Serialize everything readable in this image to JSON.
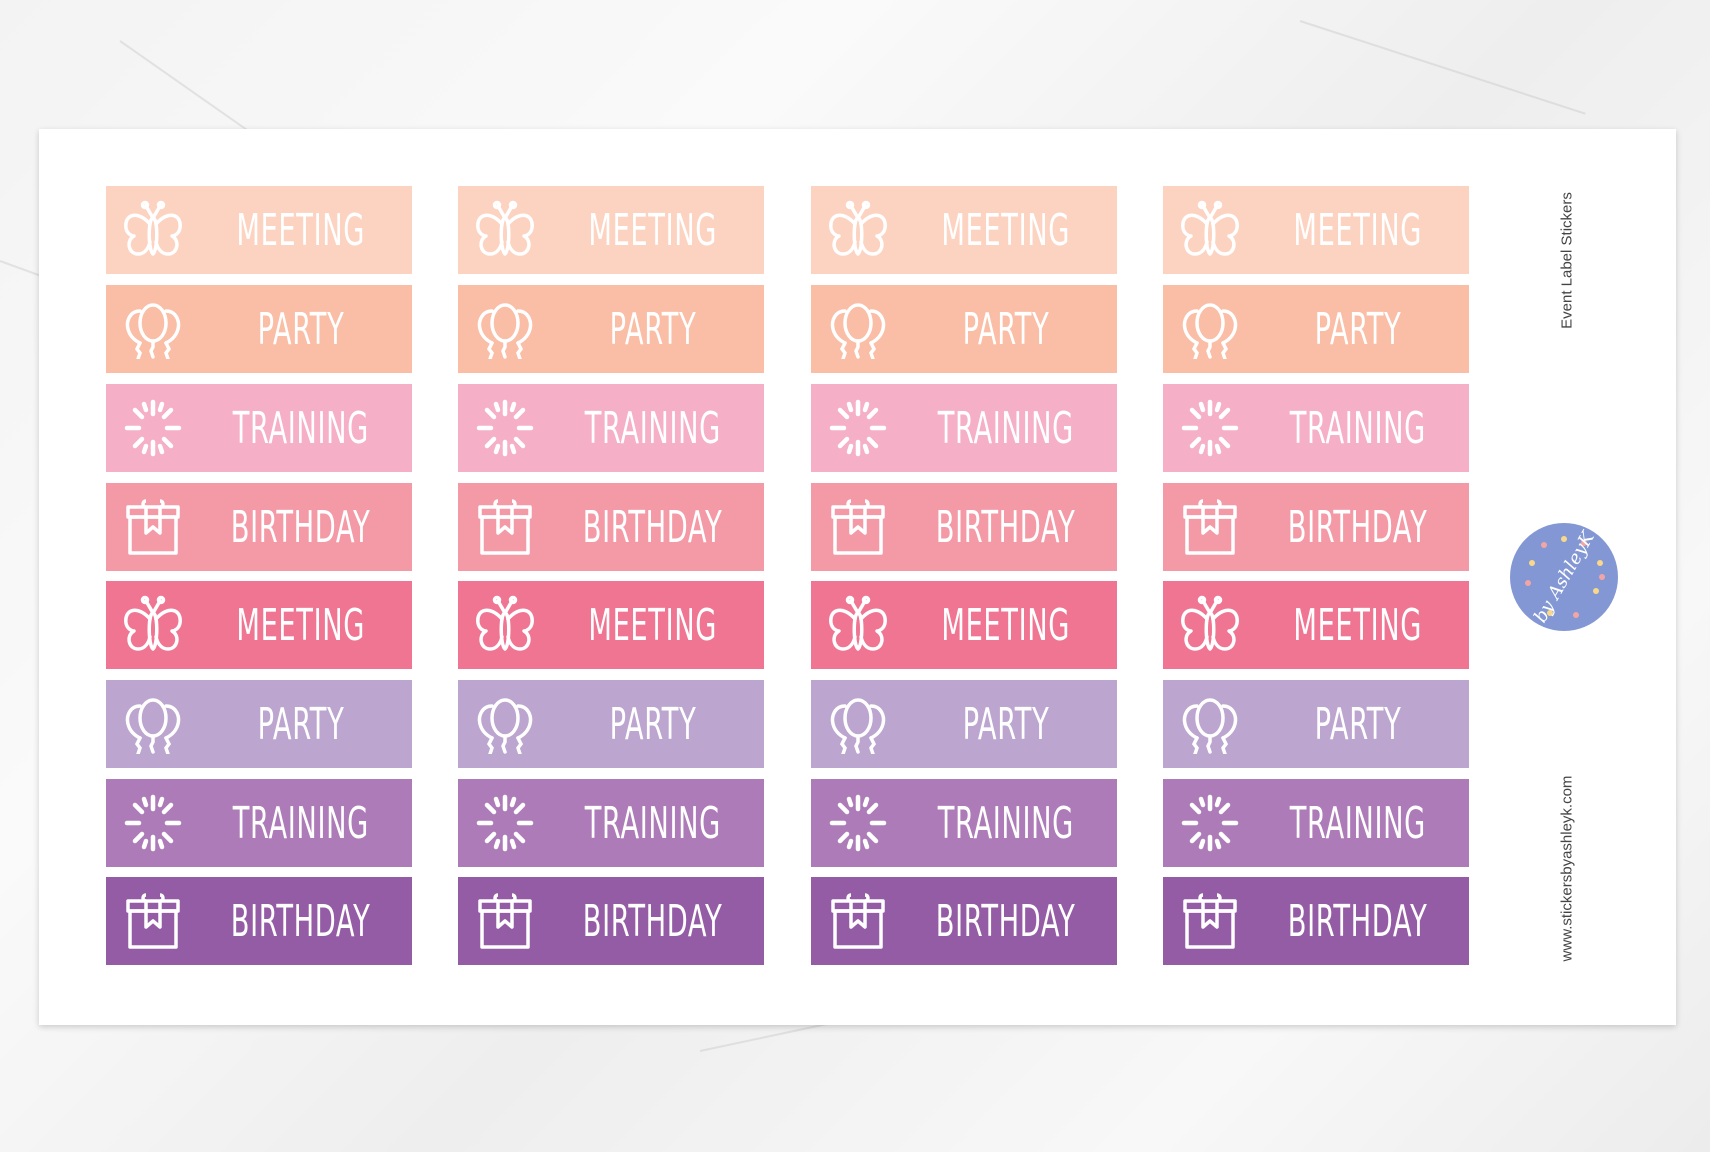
{
  "sheet": {
    "title": "Event Label Stickers",
    "website": "www.stickersbyashleyk.com",
    "logo_text": "by AshleyK"
  },
  "rows": [
    {
      "label": "MEETING",
      "icon": "butterfly-icon",
      "color": "#fcd3c1"
    },
    {
      "label": "PARTY",
      "icon": "balloons-icon",
      "color": "#fabda5"
    },
    {
      "label": "TRAINING",
      "icon": "sunburst-icon",
      "color": "#f5afc7"
    },
    {
      "label": "BIRTHDAY",
      "icon": "gift-icon",
      "color": "#f49aa6"
    },
    {
      "label": "MEETING",
      "icon": "butterfly-icon",
      "color": "#f07592"
    },
    {
      "label": "PARTY",
      "icon": "balloons-icon",
      "color": "#bca5cf"
    },
    {
      "label": "TRAINING",
      "icon": "sunburst-icon",
      "color": "#ae7bb9"
    },
    {
      "label": "BIRTHDAY",
      "icon": "gift-icon",
      "color": "#955ca6"
    }
  ],
  "columns": 4,
  "colors": {
    "logo": "#8397d4",
    "sheet": "#ffffff"
  }
}
